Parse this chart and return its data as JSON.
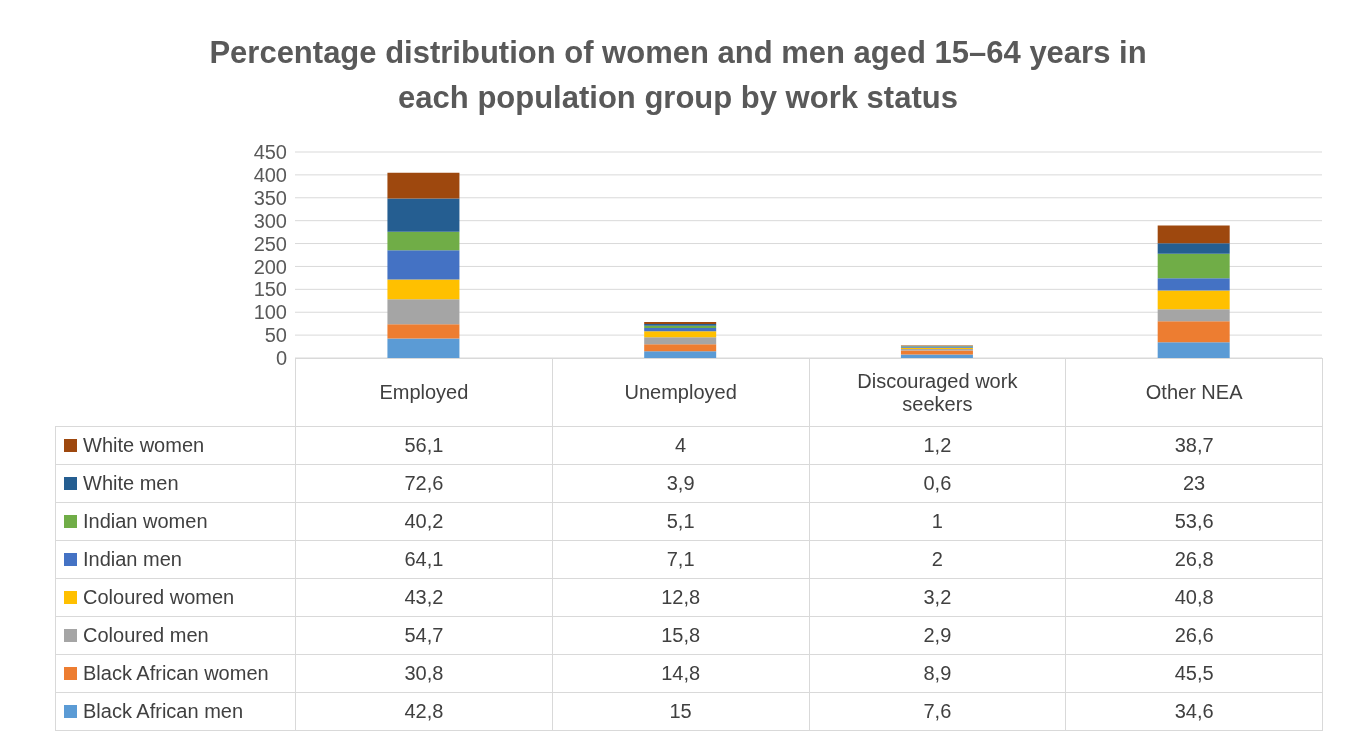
{
  "chart_data": {
    "type": "bar",
    "title": "Percentage distribution of women and men aged 15–64 years in each population group by work status",
    "categories": [
      "Employed",
      "Unemployed",
      "Discouraged work seekers",
      "Other NEA"
    ],
    "stacked": true,
    "ylim": [
      0,
      450
    ],
    "yticks": [
      0,
      50,
      100,
      150,
      200,
      250,
      300,
      350,
      400,
      450
    ],
    "grid": "y",
    "legend": "bottom left",
    "series": [
      {
        "name": "Black African men",
        "color": "#5b9bd5",
        "values": [
          42.8,
          15,
          7.6,
          34.6
        ],
        "value_labels": [
          "42,8",
          "15",
          "7,6",
          "34,6"
        ]
      },
      {
        "name": "Black African women",
        "color": "#ed7d31",
        "values": [
          30.8,
          14.8,
          8.9,
          45.5
        ],
        "value_labels": [
          "30,8",
          "14,8",
          "8,9",
          "45,5"
        ]
      },
      {
        "name": "Coloured men",
        "color": "#a5a5a5",
        "values": [
          54.7,
          15.8,
          2.9,
          26.6
        ],
        "value_labels": [
          "54,7",
          "15,8",
          "2,9",
          "26,6"
        ]
      },
      {
        "name": "Coloured women",
        "color": "#ffc000",
        "values": [
          43.2,
          12.8,
          3.2,
          40.8
        ],
        "value_labels": [
          "43,2",
          "12,8",
          "3,2",
          "40,8"
        ]
      },
      {
        "name": "Indian men",
        "color": "#4472c4",
        "values": [
          64.1,
          7.1,
          2,
          26.8
        ],
        "value_labels": [
          "64,1",
          "7,1",
          "2",
          "26,8"
        ]
      },
      {
        "name": "Indian women",
        "color": "#70ad47",
        "values": [
          40.2,
          5.1,
          1,
          53.6
        ],
        "value_labels": [
          "40,2",
          "5,1",
          "1",
          "53,6"
        ]
      },
      {
        "name": "White men",
        "color": "#255e91",
        "values": [
          72.6,
          3.9,
          0.6,
          23
        ],
        "value_labels": [
          "72,6",
          "3,9",
          "0,6",
          "23"
        ]
      },
      {
        "name": "White women",
        "color": "#9e480e",
        "values": [
          56.1,
          4,
          1.2,
          38.7
        ],
        "value_labels": [
          "56,1",
          "4",
          "1,2",
          "38,7"
        ]
      }
    ]
  }
}
